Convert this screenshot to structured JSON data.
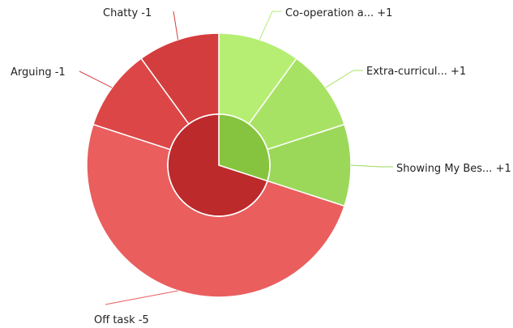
{
  "chart_data": {
    "type": "pie",
    "variant": "sunburst",
    "title": "",
    "outer": [
      {
        "label": "Co-operation a... +1",
        "value": 1,
        "group": "positive",
        "color": "#b5ee72"
      },
      {
        "label": "Extra-curricul... +1",
        "value": 1,
        "group": "positive",
        "color": "#a8e264"
      },
      {
        "label": "Showing My Bes... +1",
        "value": 1,
        "group": "positive",
        "color": "#9bd85a"
      },
      {
        "label": "Off task -5",
        "value": 5,
        "group": "negative",
        "color": "#ea5e5e"
      },
      {
        "label": "Arguing -1",
        "value": 1,
        "group": "negative",
        "color": "#dc4646"
      },
      {
        "label": "Chatty -1",
        "value": 1,
        "group": "negative",
        "color": "#d43d3d"
      }
    ],
    "inner": [
      {
        "group": "positive",
        "value": 3,
        "color": "#86c43f"
      },
      {
        "group": "negative",
        "value": 7,
        "color": "#bd2a2c"
      }
    ],
    "start_angle_deg": 0
  }
}
